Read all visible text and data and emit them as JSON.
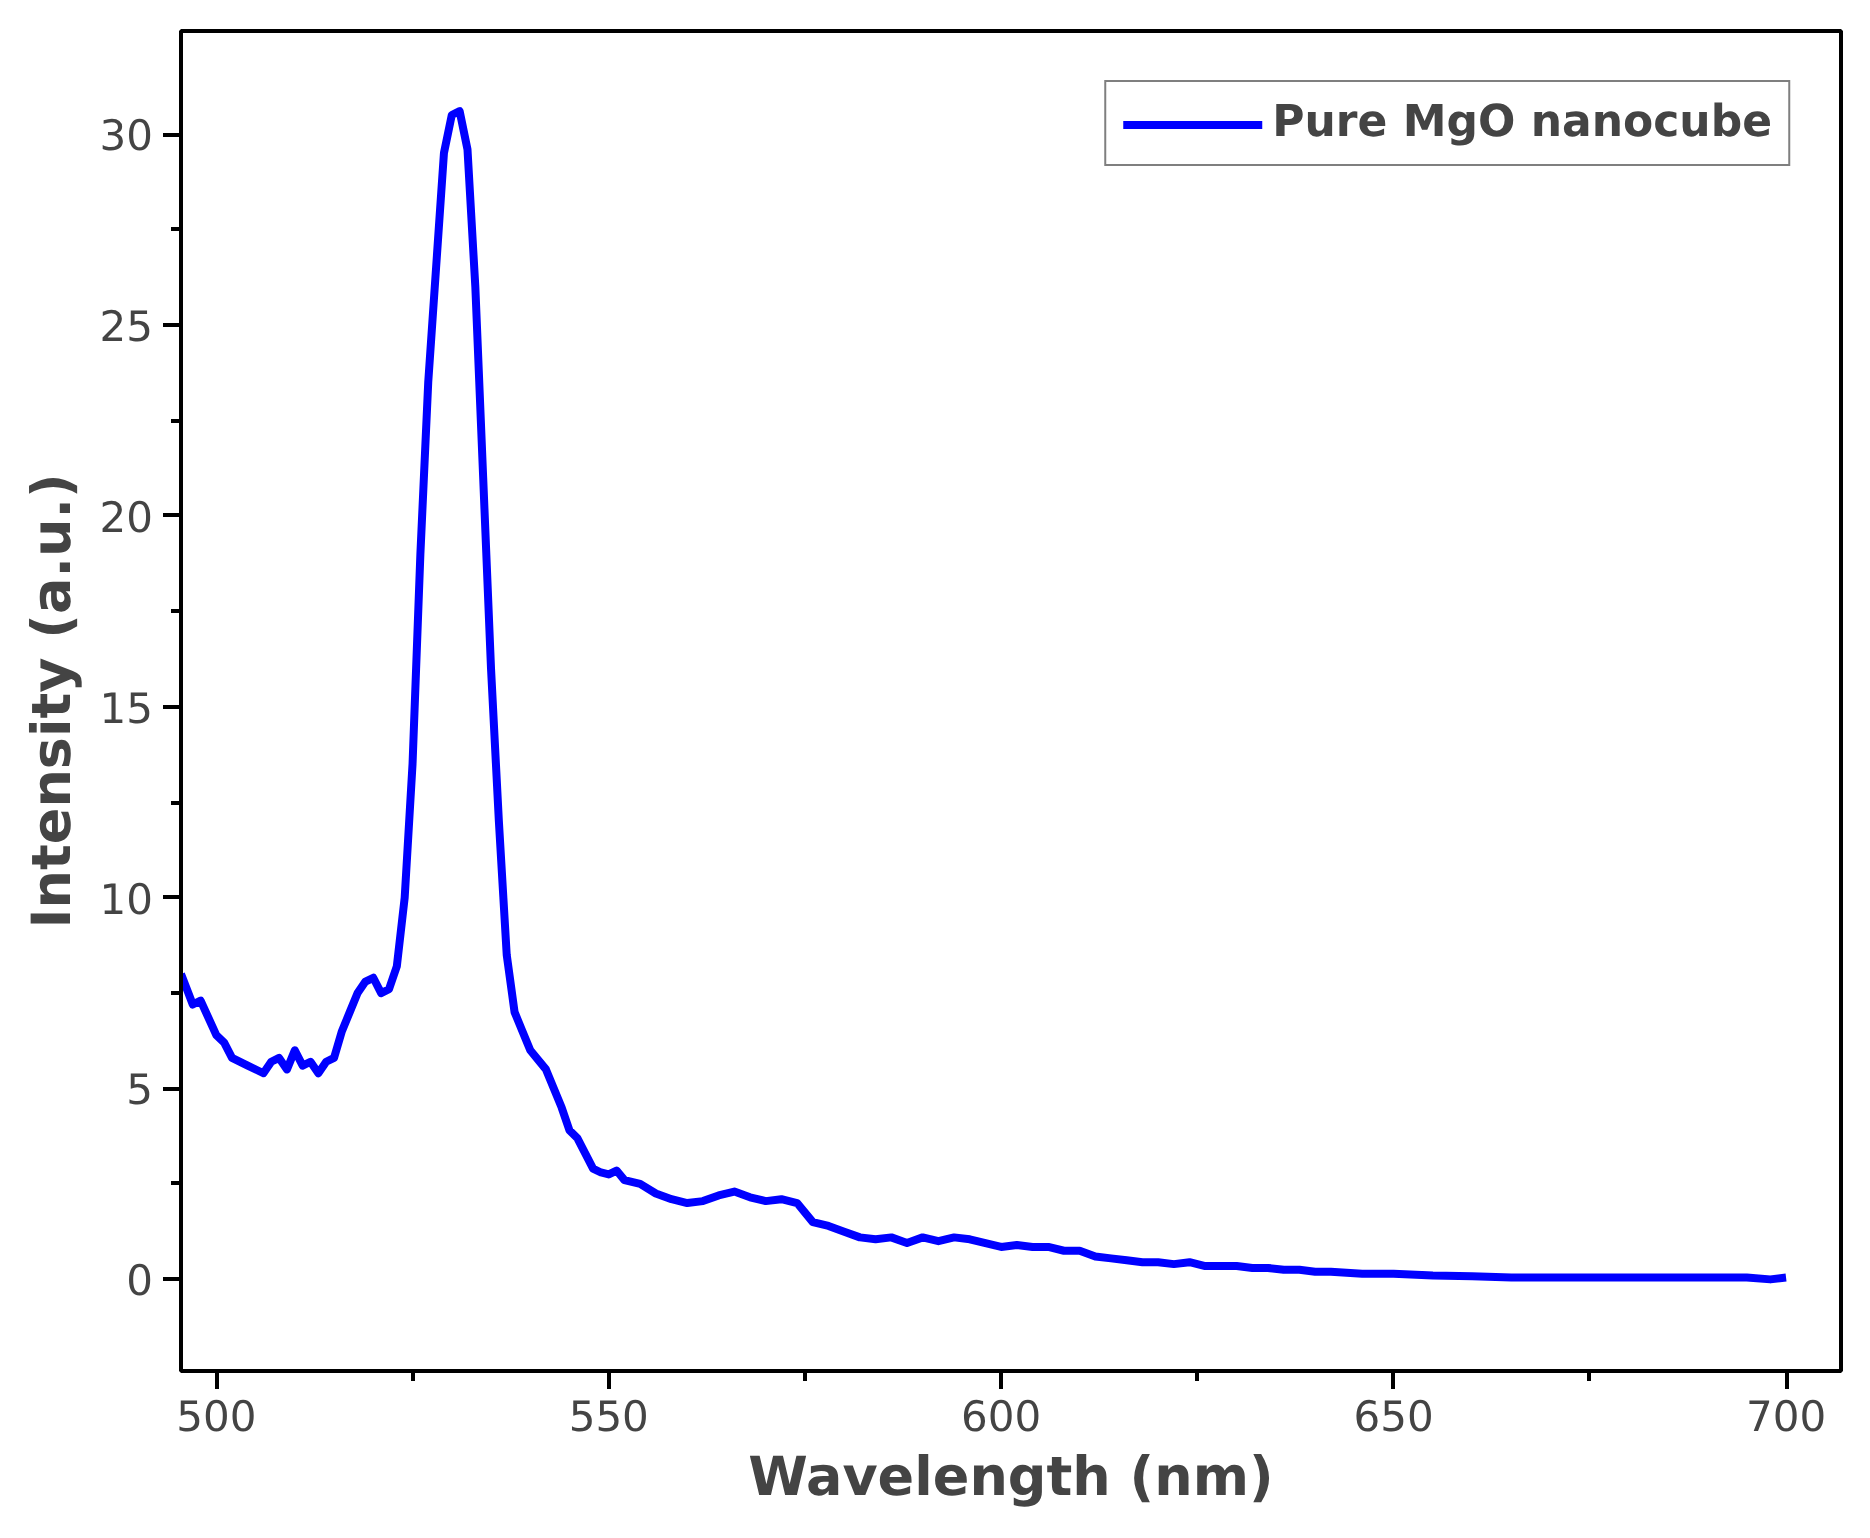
{
  "chart_data": {
    "type": "line",
    "xlabel": "Wavelength (nm)",
    "ylabel": "Intensity (a.u.)",
    "xlim": [
      495.5,
      707
    ],
    "ylim": [
      -2.4,
      32.7
    ],
    "xticks": [
      500,
      550,
      600,
      650,
      700
    ],
    "yticks": [
      0,
      5,
      10,
      15,
      20,
      25,
      30
    ],
    "grid": false,
    "legend": "top right",
    "series": [
      {
        "name": "Pure MgO nanocube",
        "color": "#0000ff",
        "x": [
          495.5,
          497,
          498,
          500,
          501,
          502,
          504,
          506,
          507,
          508,
          509,
          510,
          511,
          512,
          513,
          514,
          515,
          516,
          517,
          518,
          519,
          520,
          521,
          522,
          523,
          524,
          525,
          526,
          527,
          528,
          529,
          530,
          531,
          532,
          533,
          534,
          535,
          536,
          537,
          538,
          539,
          540,
          542,
          543,
          544,
          545,
          546,
          547,
          548,
          549,
          550,
          551,
          552,
          554,
          556,
          558,
          560,
          562,
          564,
          566,
          568,
          570,
          572,
          574,
          576,
          578,
          580,
          582,
          584,
          586,
          588,
          590,
          592,
          594,
          596,
          598,
          600,
          602,
          604,
          606,
          608,
          610,
          612,
          614,
          616,
          618,
          620,
          622,
          624,
          626,
          628,
          630,
          632,
          634,
          636,
          638,
          640,
          642,
          646,
          650,
          655,
          660,
          665,
          670,
          675,
          680,
          685,
          690,
          695,
          698,
          700
        ],
        "values": [
          8.0,
          7.2,
          7.3,
          6.4,
          6.2,
          5.8,
          5.6,
          5.4,
          5.7,
          5.8,
          5.5,
          6.0,
          5.6,
          5.7,
          5.4,
          5.7,
          5.8,
          6.5,
          7.0,
          7.5,
          7.8,
          7.9,
          7.5,
          7.6,
          8.2,
          10.0,
          13.5,
          19,
          23.5,
          26.5,
          29.5,
          30.5,
          30.6,
          29.6,
          26,
          21,
          16,
          12,
          8.5,
          7.0,
          6.5,
          6.0,
          5.5,
          5.0,
          4.5,
          3.9,
          3.7,
          3.3,
          2.9,
          2.8,
          2.75,
          2.85,
          2.6,
          2.5,
          2.25,
          2.1,
          2.0,
          2.05,
          2.2,
          2.3,
          2.15,
          2.05,
          2.1,
          2.0,
          1.5,
          1.4,
          1.25,
          1.1,
          1.05,
          1.1,
          0.95,
          1.1,
          1.0,
          1.1,
          1.05,
          0.95,
          0.85,
          0.9,
          0.85,
          0.85,
          0.75,
          0.75,
          0.6,
          0.55,
          0.5,
          0.45,
          0.45,
          0.4,
          0.45,
          0.35,
          0.35,
          0.35,
          0.3,
          0.3,
          0.25,
          0.25,
          0.2,
          0.2,
          0.15,
          0.15,
          0.1,
          0.08,
          0.05,
          0.05,
          0.05,
          0.05,
          0.05,
          0.05,
          0.05,
          0.0,
          0.05
        ]
      }
    ]
  }
}
